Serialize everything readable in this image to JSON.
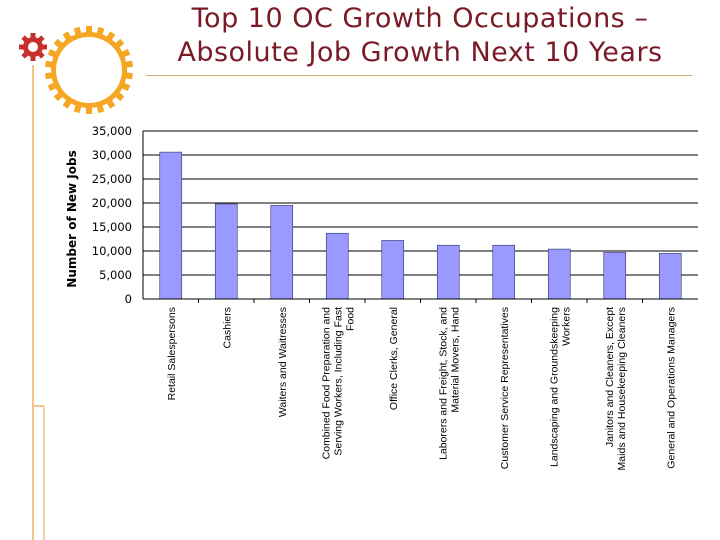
{
  "slide": {
    "title_line1": "Top 10 OC Growth Occupations –",
    "title_line2": "Absolute Job Growth Next 10 Years"
  },
  "colors": {
    "title": "#7a1a26",
    "bar_fill": "#9999ff",
    "bar_stroke": "#333366",
    "gear_orange": "#f5a623",
    "gear_red": "#c8302e",
    "decor_line": "#f2c38a"
  },
  "chart_data": {
    "type": "bar",
    "title": "",
    "xlabel": "",
    "ylabel": "Number of New Jobs",
    "ylim": [
      0,
      35000
    ],
    "yticks": [
      0,
      5000,
      10000,
      15000,
      20000,
      25000,
      30000,
      35000
    ],
    "ytick_labels": [
      "0",
      "5,000",
      "10,000",
      "15,000",
      "20,000",
      "25,000",
      "30,000",
      "35,000"
    ],
    "grid": true,
    "legend": "none",
    "categories": [
      [
        "Retail Salespersons"
      ],
      [
        "Cashiers"
      ],
      [
        "Waiters and Waitresses"
      ],
      [
        "Combined Food Preparation and",
        "Serving Workers, Including Fast",
        "Food"
      ],
      [
        "Office Clerks, General"
      ],
      [
        "Laborers and Freight, Stock, and",
        "Material Movers, Hand"
      ],
      [
        "Customer Service Representatives"
      ],
      [
        "Landscaping and Groundskeeping",
        "Workers"
      ],
      [
        "Janitors and Cleaners, Except",
        "Maids and Housekeeping Cleaners"
      ],
      [
        "General and Operations Managers"
      ]
    ],
    "values": [
      30600,
      19800,
      19500,
      13700,
      12200,
      11200,
      11200,
      10400,
      9700,
      9500
    ]
  }
}
